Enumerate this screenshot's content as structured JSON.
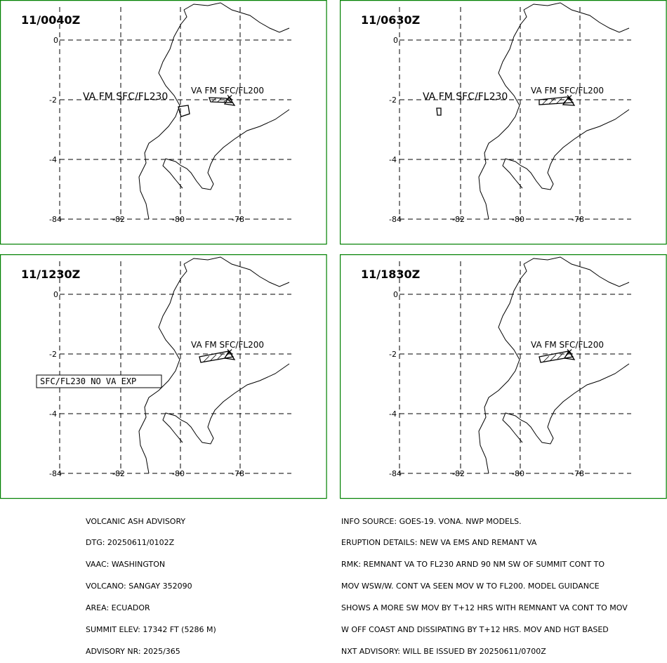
{
  "panels": [
    {
      "time": "11/0040Z",
      "lat_labels": [
        "0",
        "-2",
        "-4"
      ],
      "lon_labels": [
        "-84",
        "-82",
        "-80",
        "-78"
      ],
      "labels": [
        "VA FM SFC/FL230",
        "VA FM SFC/FL200"
      ],
      "notice": ""
    },
    {
      "time": "11/0630Z",
      "lat_labels": [
        "0",
        "-2",
        "-4"
      ],
      "lon_labels": [
        "-84",
        "-82",
        "-80",
        "-78"
      ],
      "labels": [
        "VA FM SFC/FL230",
        "VA FM SFC/FL200"
      ],
      "notice": ""
    },
    {
      "time": "11/1230Z",
      "lat_labels": [
        "0",
        "-2",
        "-4"
      ],
      "lon_labels": [
        "-84",
        "-82",
        "-80",
        "-78"
      ],
      "labels": [
        "",
        "VA FM SFC/FL200"
      ],
      "notice": "SFC/FL230 NO VA EXP"
    },
    {
      "time": "11/1830Z",
      "lat_labels": [
        "0",
        "-2",
        "-4"
      ],
      "lon_labels": [
        "-84",
        "-82",
        "-80",
        "-78"
      ],
      "labels": [
        "",
        "VA FM SFC/FL200"
      ],
      "notice": ""
    }
  ],
  "advisory_left": [
    "VOLCANIC ASH ADVISORY",
    "DTG: 20250611/0102Z",
    "VAAC: WASHINGTON",
    "VOLCANO: SANGAY 352090",
    "AREA: ECUADOR",
    "SUMMIT ELEV: 17342 FT (5286 M)",
    "ADVISORY NR: 2025/365"
  ],
  "advisory_right": [
    "INFO SOURCE: GOES-19. VONA. NWP MODELS.",
    "ERUPTION DETAILS: NEW VA EMS AND REMANT VA",
    "RMK: REMNANT VA TO FL230 ARND 90 NM SW OF SUMMIT CONT TO",
    "MOV WSW/W. CONT VA SEEN MOV W TO FL200. MODEL GUIDANCE",
    "SHOWS A MORE SW MOV BY T+12 HRS WITH REMNANT VA CONT TO MOV",
    "W OFF COAST AND DISSIPATING BY T+12 HRS. MOV AND HGT BASED",
    "NXT ADVISORY: WILL BE ISSUED BY 20250611/0700Z"
  ],
  "colors": {
    "frame": "#008000",
    "lines": "#000000",
    "background": "#ffffff"
  }
}
